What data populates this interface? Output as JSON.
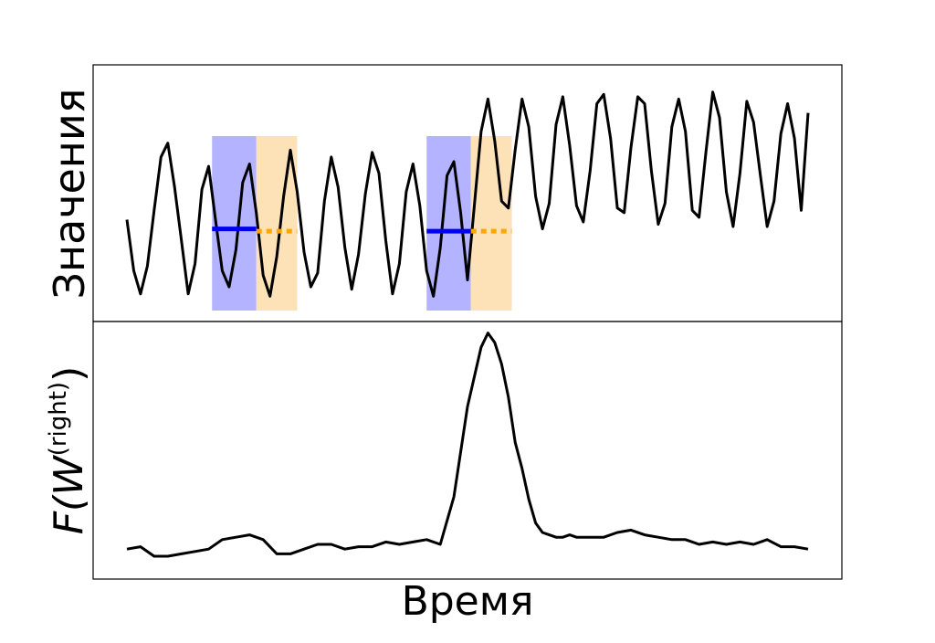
{
  "chart_data": [
    {
      "type": "line",
      "panel": "top",
      "ylabel": "Значения",
      "xlabel": "",
      "grid": false,
      "legend": "none",
      "xlim": [
        0,
        200
      ],
      "ylim": [
        0,
        10
      ],
      "series": [
        {
          "color": "#000000",
          "x": [
            0,
            2,
            4,
            6,
            8,
            10,
            12,
            14,
            16,
            18,
            20,
            22,
            24,
            26,
            28,
            30,
            32,
            34,
            36,
            38,
            40,
            42,
            44,
            46,
            48,
            50,
            52,
            54,
            56,
            58,
            60,
            62,
            64,
            66,
            68,
            70,
            72,
            74,
            76,
            78,
            80,
            82,
            84,
            86,
            88,
            90,
            92,
            94,
            96,
            98,
            100,
            102,
            104,
            106,
            108,
            110,
            112,
            114,
            116,
            118,
            120,
            122,
            124,
            126,
            128,
            130,
            132,
            134,
            136,
            138,
            140,
            142,
            144,
            146,
            148,
            150,
            152,
            154,
            156,
            158,
            160,
            162,
            164,
            166,
            168,
            170,
            172,
            174,
            176,
            178,
            180,
            182,
            184,
            186,
            188,
            190,
            192,
            194,
            196,
            198,
            200
          ],
          "values": [
            3.8,
            1.6,
            0.6,
            1.8,
            4.2,
            6.5,
            7.1,
            5.2,
            2.9,
            0.6,
            1.9,
            5.1,
            6.1,
            3.8,
            1.6,
            0.9,
            2.5,
            5.4,
            6.2,
            4.1,
            1.4,
            0.5,
            2.2,
            4.8,
            6.8,
            5.0,
            2.4,
            0.9,
            1.5,
            4.6,
            6.5,
            5.2,
            2.6,
            0.8,
            2.3,
            4.9,
            6.7,
            5.8,
            2.9,
            0.6,
            1.9,
            5.0,
            6.2,
            4.4,
            1.6,
            0.5,
            2.6,
            5.7,
            6.3,
            4.1,
            1.2,
            4.4,
            7.6,
            9.0,
            7.2,
            4.6,
            4.3,
            6.8,
            9.0,
            7.8,
            4.8,
            3.4,
            4.5,
            7.9,
            9.1,
            7.0,
            4.4,
            3.7,
            5.9,
            8.8,
            9.2,
            7.3,
            4.3,
            4.1,
            6.9,
            9.1,
            8.8,
            5.9,
            3.6,
            4.5,
            7.8,
            9.0,
            7.6,
            4.2,
            3.9,
            6.7,
            9.3,
            8.2,
            5.0,
            3.5,
            5.8,
            8.9,
            8.0,
            5.7,
            3.5,
            4.6,
            7.5,
            8.8,
            7.3,
            4.2,
            8.4
          ]
        }
      ],
      "highlights": [
        {
          "segment": "left",
          "x": [
            25,
            38
          ],
          "color": "#b3b3ff",
          "level": 3.4,
          "line_color": "#0000ee",
          "line_style": "solid"
        },
        {
          "segment": "right",
          "x": [
            38,
            50
          ],
          "color": "#fde2b8",
          "level": 3.3,
          "line_color": "#ffa500",
          "line_style": "dotted"
        },
        {
          "segment": "left",
          "x": [
            88,
            101
          ],
          "color": "#b3b3ff",
          "level": 3.3,
          "line_color": "#0000ee",
          "line_style": "solid"
        },
        {
          "segment": "right",
          "x": [
            101,
            113
          ],
          "color": "#fde2b8",
          "level": 3.3,
          "line_color": "#ffa500",
          "line_style": "dotted"
        }
      ]
    },
    {
      "type": "line",
      "panel": "bottom",
      "ylabel": "F(W(right))",
      "xlabel": "Время",
      "grid": false,
      "legend": "none",
      "xlim": [
        0,
        200
      ],
      "ylim": [
        0,
        10
      ],
      "series": [
        {
          "color": "#000000",
          "x": [
            0,
            4,
            8,
            12,
            16,
            20,
            24,
            28,
            32,
            36,
            40,
            44,
            48,
            52,
            56,
            60,
            64,
            68,
            72,
            76,
            80,
            84,
            88,
            92,
            96,
            100,
            104,
            106,
            108,
            110,
            112,
            114,
            116,
            118,
            120,
            122,
            124,
            126,
            128,
            130,
            132,
            136,
            140,
            144,
            148,
            152,
            156,
            160,
            164,
            168,
            172,
            176,
            180,
            184,
            188,
            192,
            196,
            200
          ],
          "values": [
            0.8,
            0.9,
            0.5,
            0.5,
            0.6,
            0.7,
            0.8,
            1.2,
            1.3,
            1.4,
            1.2,
            0.6,
            0.6,
            0.8,
            1.0,
            1.0,
            0.8,
            0.9,
            0.9,
            1.1,
            1.0,
            1.1,
            1.2,
            1.0,
            3.0,
            6.8,
            9.3,
            9.9,
            9.5,
            8.6,
            7.2,
            5.3,
            4.2,
            2.9,
            1.9,
            1.5,
            1.4,
            1.3,
            1.3,
            1.4,
            1.3,
            1.3,
            1.3,
            1.5,
            1.6,
            1.4,
            1.3,
            1.2,
            1.2,
            1.0,
            1.1,
            1.0,
            1.1,
            1.0,
            1.2,
            0.9,
            0.9,
            0.8
          ]
        }
      ]
    }
  ]
}
